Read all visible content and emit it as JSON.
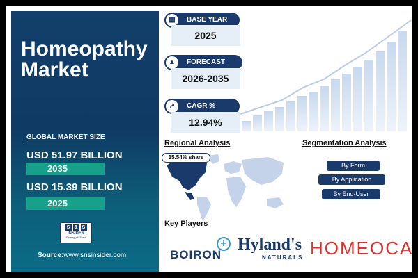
{
  "title_line1": "Homeopathy",
  "title_line2": "Market",
  "global_market_size_label": "GLOBAL MARKET SIZE",
  "value_2035": "USD 51.97 BILLION",
  "year_2035": "2035",
  "value_2025": "USD 15.39 BILLION",
  "year_2025": "2025",
  "logo": {
    "letters": [
      "S",
      "&",
      "S"
    ],
    "name": "INSIDER",
    "tagline": "Strategy & Stats"
  },
  "source_label": "Source:",
  "source_url": "www.snsinsider.com",
  "base_year_label": "BASE YEAR",
  "base_year_value": "2025",
  "forecast_year_label": "FORECAST YEAR",
  "forecast_year_value": "2026-2035",
  "cagr_label": "CAGR %",
  "cagr_value": "12.94%",
  "regional_analysis_label": "Regional Analysis",
  "share_badge": "35.54% share",
  "segmentation_label": "Segmentation Analysis",
  "segments": [
    "By Form",
    "By Application",
    "By End-User"
  ],
  "key_players_label": "Key Players",
  "players": {
    "boiron": "BOIRON",
    "hylands": "Hyland's",
    "hylands_sub": "NATURALS",
    "homeocan": "HOMEOCAN"
  },
  "colors": {
    "navy": "#1a3a6b",
    "teal": "#17a08a",
    "accent_red": "#e0302a"
  }
}
